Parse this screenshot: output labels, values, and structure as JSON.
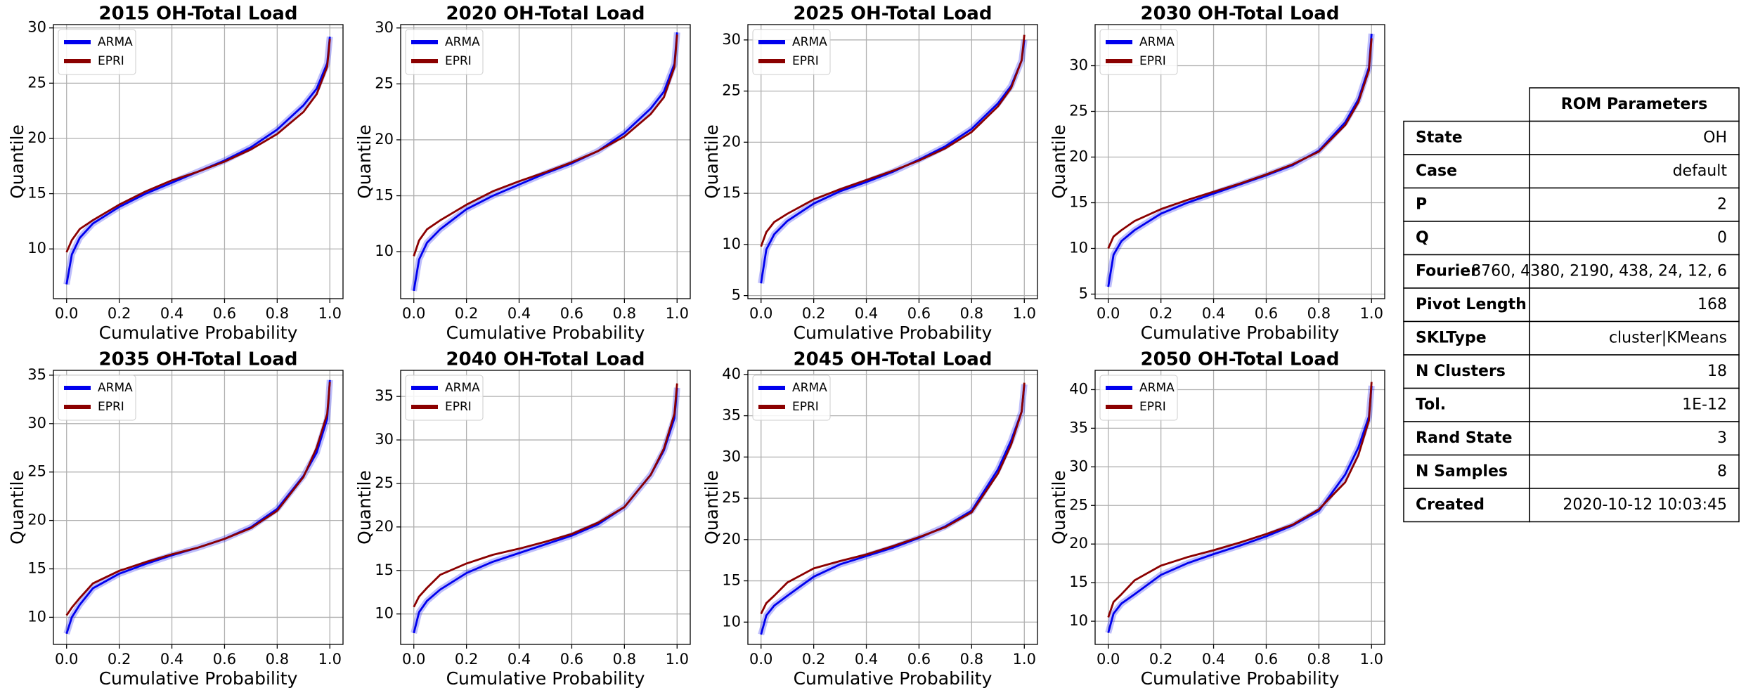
{
  "chart_data": [
    {
      "type": "line",
      "title": "2015 OH-Total Load",
      "xlabel": "Cumulative Probability",
      "ylabel": "Quantile",
      "grid": true,
      "legend": "upper left",
      "x": [
        0,
        0.02,
        0.05,
        0.1,
        0.2,
        0.3,
        0.4,
        0.5,
        0.6,
        0.7,
        0.8,
        0.9,
        0.95,
        0.99,
        1.0
      ],
      "xlim": [
        -0.05,
        1.05
      ],
      "xticks": [
        {
          "value": 0,
          "label": "0.0"
        },
        0.2,
        0.4,
        0.6,
        0.8,
        {
          "value": 1,
          "label": "1.0"
        }
      ],
      "ylim": [
        5.5,
        30.3
      ],
      "yticks": [
        10,
        15,
        20,
        25,
        30
      ],
      "series": [
        {
          "name": "ARMA",
          "color": "#0000ee",
          "values": [
            6.8,
            9.5,
            11,
            12.3,
            13.8,
            15,
            16,
            17,
            18,
            19.2,
            20.8,
            23,
            24.5,
            26.8,
            29.2
          ]
        },
        {
          "name": "EPRI",
          "color": "#8b0000",
          "values": [
            9.7,
            10.8,
            11.8,
            12.6,
            14,
            15.2,
            16.2,
            17,
            17.9,
            19,
            20.4,
            22.4,
            24,
            26.5,
            29
          ]
        }
      ]
    },
    {
      "type": "line",
      "title": "2020 OH-Total Load",
      "xlabel": "Cumulative Probability",
      "ylabel": "Quantile",
      "grid": true,
      "legend": "upper left",
      "x": [
        0,
        0.02,
        0.05,
        0.1,
        0.2,
        0.3,
        0.4,
        0.5,
        0.6,
        0.7,
        0.8,
        0.9,
        0.95,
        0.99,
        1.0
      ],
      "xlim": [
        -0.05,
        1.05
      ],
      "xticks": [
        {
          "value": 0,
          "label": "0.0"
        },
        0.2,
        0.4,
        0.6,
        0.8,
        {
          "value": 1,
          "label": "1.0"
        }
      ],
      "ylim": [
        5.8,
        30.3
      ],
      "yticks": [
        10,
        15,
        20,
        25,
        30
      ],
      "series": [
        {
          "name": "ARMA",
          "color": "#0000ee",
          "values": [
            6.5,
            9.3,
            10.8,
            12,
            13.8,
            15,
            16,
            17,
            17.9,
            19,
            20.6,
            22.8,
            24.3,
            26.8,
            29.6
          ]
        },
        {
          "name": "EPRI",
          "color": "#8b0000",
          "values": [
            9.6,
            11,
            12,
            12.8,
            14.2,
            15.4,
            16.3,
            17.1,
            18,
            19,
            20.3,
            22.3,
            23.8,
            26.5,
            29.4
          ]
        }
      ]
    },
    {
      "type": "line",
      "title": "2025 OH-Total Load",
      "xlabel": "Cumulative Probability",
      "ylabel": "Quantile",
      "grid": true,
      "legend": "upper left",
      "x": [
        0,
        0.02,
        0.05,
        0.1,
        0.2,
        0.3,
        0.4,
        0.5,
        0.6,
        0.7,
        0.8,
        0.9,
        0.95,
        0.99,
        1.0
      ],
      "xlim": [
        -0.05,
        1.05
      ],
      "xticks": [
        {
          "value": 0,
          "label": "0.0"
        },
        0.2,
        0.4,
        0.6,
        0.8,
        {
          "value": 1,
          "label": "1.0"
        }
      ],
      "ylim": [
        4.7,
        31.5
      ],
      "yticks": [
        5,
        10,
        15,
        20,
        25,
        30
      ],
      "series": [
        {
          "name": "ARMA",
          "color": "#0000ee",
          "values": [
            6.2,
            9.5,
            11,
            12.3,
            14,
            15.2,
            16.1,
            17.1,
            18.3,
            19.6,
            21.3,
            23.8,
            25.5,
            28,
            30
          ]
        },
        {
          "name": "EPRI",
          "color": "#8b0000",
          "values": [
            9.8,
            11.2,
            12.2,
            13,
            14.4,
            15.4,
            16.3,
            17.2,
            18.2,
            19.4,
            21,
            23.5,
            25.3,
            28,
            30.5
          ]
        }
      ]
    },
    {
      "type": "line",
      "title": "2030 OH-Total Load",
      "xlabel": "Cumulative Probability",
      "ylabel": "Quantile",
      "grid": true,
      "legend": "upper left",
      "x": [
        0,
        0.02,
        0.05,
        0.1,
        0.2,
        0.3,
        0.4,
        0.5,
        0.6,
        0.7,
        0.8,
        0.9,
        0.95,
        0.99,
        1.0
      ],
      "xlim": [
        -0.05,
        1.05
      ],
      "xticks": [
        {
          "value": 0,
          "label": "0.0"
        },
        0.2,
        0.4,
        0.6,
        0.8,
        {
          "value": 1,
          "label": "1.0"
        }
      ],
      "ylim": [
        4.5,
        34.5
      ],
      "yticks": [
        5,
        10,
        15,
        20,
        25,
        30
      ],
      "series": [
        {
          "name": "ARMA",
          "color": "#0000ee",
          "values": [
            5.8,
            9.3,
            10.8,
            12,
            13.8,
            15,
            16,
            17,
            18,
            19.1,
            20.7,
            23.8,
            26.3,
            29.8,
            33.5
          ]
        },
        {
          "name": "EPRI",
          "color": "#8b0000",
          "values": [
            10,
            11.3,
            12,
            13,
            14.3,
            15.3,
            16.2,
            17.1,
            18.1,
            19.2,
            20.6,
            23.5,
            26,
            29.5,
            33
          ]
        }
      ]
    },
    {
      "type": "line",
      "title": "2035 OH-Total Load",
      "xlabel": "Cumulative Probability",
      "ylabel": "Quantile",
      "grid": true,
      "legend": "upper left",
      "x": [
        0,
        0.02,
        0.05,
        0.1,
        0.2,
        0.3,
        0.4,
        0.5,
        0.6,
        0.7,
        0.8,
        0.9,
        0.95,
        0.99,
        1.0
      ],
      "xlim": [
        -0.05,
        1.05
      ],
      "xticks": [
        {
          "value": 0,
          "label": "0.0"
        },
        0.2,
        0.4,
        0.6,
        0.8,
        {
          "value": 1,
          "label": "1.0"
        }
      ],
      "ylim": [
        7.2,
        35.5
      ],
      "yticks": [
        10,
        15,
        20,
        25,
        30,
        35
      ],
      "series": [
        {
          "name": "ARMA",
          "color": "#0000ee",
          "values": [
            8.3,
            10,
            11.3,
            13,
            14.5,
            15.5,
            16.4,
            17.2,
            18.1,
            19.3,
            21.2,
            24.6,
            27,
            30.5,
            34.5
          ]
        },
        {
          "name": "EPRI",
          "color": "#8b0000",
          "values": [
            10.2,
            11,
            12,
            13.5,
            14.8,
            15.7,
            16.5,
            17.2,
            18.1,
            19.2,
            21,
            24.5,
            27.5,
            31,
            34.3
          ]
        }
      ]
    },
    {
      "type": "line",
      "title": "2040 OH-Total Load",
      "xlabel": "Cumulative Probability",
      "ylabel": "Quantile",
      "grid": true,
      "legend": "upper left",
      "x": [
        0,
        0.02,
        0.05,
        0.1,
        0.2,
        0.3,
        0.4,
        0.5,
        0.6,
        0.7,
        0.8,
        0.9,
        0.95,
        0.99,
        1.0
      ],
      "xlim": [
        -0.05,
        1.05
      ],
      "xticks": [
        {
          "value": 0,
          "label": "0.0"
        },
        0.2,
        0.4,
        0.6,
        0.8,
        {
          "value": 1,
          "label": "1.0"
        }
      ],
      "ylim": [
        6.5,
        38
      ],
      "yticks": [
        10,
        15,
        20,
        25,
        30,
        35
      ],
      "series": [
        {
          "name": "ARMA",
          "color": "#0000ee",
          "values": [
            7.8,
            10.2,
            11.5,
            12.8,
            14.7,
            16,
            17,
            18,
            19,
            20.3,
            22.3,
            26,
            28.8,
            32.5,
            36
          ]
        },
        {
          "name": "EPRI",
          "color": "#8b0000",
          "values": [
            10.8,
            12,
            13,
            14.5,
            15.8,
            16.8,
            17.5,
            18.3,
            19.2,
            20.5,
            22.3,
            26,
            29,
            33,
            36.5
          ]
        }
      ]
    },
    {
      "type": "line",
      "title": "2045 OH-Total Load",
      "xlabel": "Cumulative Probability",
      "ylabel": "Quantile",
      "grid": true,
      "legend": "upper left",
      "x": [
        0,
        0.02,
        0.05,
        0.1,
        0.2,
        0.3,
        0.4,
        0.5,
        0.6,
        0.7,
        0.8,
        0.9,
        0.95,
        0.99,
        1.0
      ],
      "xlim": [
        -0.05,
        1.05
      ],
      "xticks": [
        {
          "value": 0,
          "label": "0.0"
        },
        0.2,
        0.4,
        0.6,
        0.8,
        {
          "value": 1,
          "label": "1.0"
        }
      ],
      "ylim": [
        7.3,
        40.5
      ],
      "yticks": [
        10,
        15,
        20,
        25,
        30,
        35,
        40
      ],
      "series": [
        {
          "name": "ARMA",
          "color": "#0000ee",
          "values": [
            8.5,
            10.8,
            12,
            13.2,
            15.5,
            17,
            18,
            19,
            20.2,
            21.6,
            23.5,
            28.5,
            32,
            35.5,
            38.8
          ]
        },
        {
          "name": "EPRI",
          "color": "#8b0000",
          "values": [
            11,
            12.3,
            13.2,
            14.8,
            16.5,
            17.4,
            18.2,
            19.2,
            20.3,
            21.5,
            23.3,
            28,
            31.5,
            35.5,
            39
          ]
        }
      ]
    },
    {
      "type": "line",
      "title": "2050 OH-Total Load",
      "xlabel": "Cumulative Probability",
      "ylabel": "Quantile",
      "grid": true,
      "legend": "upper left",
      "x": [
        0,
        0.02,
        0.05,
        0.1,
        0.2,
        0.3,
        0.4,
        0.5,
        0.6,
        0.7,
        0.8,
        0.9,
        0.95,
        0.99,
        1.0
      ],
      "xlim": [
        -0.05,
        1.05
      ],
      "xticks": [
        {
          "value": 0,
          "label": "0.0"
        },
        0.2,
        0.4,
        0.6,
        0.8,
        {
          "value": 1,
          "label": "1.0"
        }
      ],
      "ylim": [
        7,
        42.5
      ],
      "yticks": [
        10,
        15,
        20,
        25,
        30,
        35,
        40
      ],
      "series": [
        {
          "name": "ARMA",
          "color": "#0000ee",
          "values": [
            8.5,
            11,
            12.3,
            13.5,
            16,
            17.5,
            18.7,
            19.8,
            21,
            22.4,
            24.3,
            29,
            32.5,
            36.5,
            40.5
          ]
        },
        {
          "name": "EPRI",
          "color": "#8b0000",
          "values": [
            10.5,
            12.5,
            13.5,
            15.3,
            17.2,
            18.3,
            19.2,
            20.2,
            21.3,
            22.5,
            24.5,
            28,
            31.5,
            36,
            41
          ]
        }
      ]
    }
  ],
  "table": {
    "header": "ROM Parameters",
    "rows": [
      [
        "State",
        "OH"
      ],
      [
        "Case",
        "default"
      ],
      [
        "P",
        "2"
      ],
      [
        "Q",
        "0"
      ],
      [
        "Fourier",
        "8760, 4380, 2190, 438, 24, 12, 6"
      ],
      [
        "Pivot Length",
        "168"
      ],
      [
        "SKLType",
        "cluster|KMeans"
      ],
      [
        "N Clusters",
        "18"
      ],
      [
        "Tol.",
        "1E-12"
      ],
      [
        "Rand State",
        "3"
      ],
      [
        "N Samples",
        "8"
      ],
      [
        "Created",
        "2020-10-12 10:03:45"
      ]
    ]
  }
}
